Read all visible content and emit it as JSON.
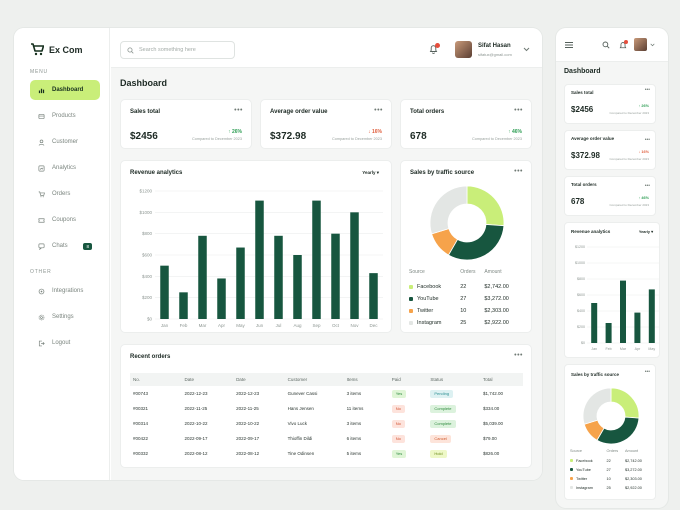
{
  "app": {
    "name": "Ex Com"
  },
  "sidebar": {
    "menu_label": "MENU",
    "other_label": "OTHER",
    "items": [
      {
        "label": "Dashboard"
      },
      {
        "label": "Products"
      },
      {
        "label": "Customer"
      },
      {
        "label": "Analytics"
      },
      {
        "label": "Orders"
      },
      {
        "label": "Coupons"
      },
      {
        "label": "Chats",
        "badge": "8"
      }
    ],
    "other_items": [
      {
        "label": "Integrations"
      },
      {
        "label": "Settings"
      },
      {
        "label": "Logout"
      }
    ]
  },
  "header": {
    "search_placeholder": "Search something here",
    "user_name": "Sifat Hasan",
    "user_email": "sifatux@gmail.com"
  },
  "page": {
    "title": "Dashboard"
  },
  "stats": [
    {
      "title": "Sales total",
      "value": "$2456",
      "change": "↑ 26%",
      "direction": "up",
      "note": "Compared to December 2023"
    },
    {
      "title": "Average order value",
      "value": "$372.98",
      "change": "↓ 16%",
      "direction": "down",
      "note": "Compared to December 2023"
    },
    {
      "title": "Total orders",
      "value": "678",
      "change": "↑ 46%",
      "direction": "up",
      "note": "Compared to December 2023"
    }
  ],
  "more_menu": "•••",
  "revenue": {
    "title": "Revenue analytics",
    "period": "Yearly"
  },
  "traffic": {
    "title": "Sales by traffic source",
    "columns": [
      "Source",
      "Orders",
      "Amount"
    ],
    "rows": [
      {
        "source": "Facebook",
        "orders": "22",
        "amount": "$2,742.00",
        "color": "#c9ee79"
      },
      {
        "source": "YouTube",
        "orders": "27",
        "amount": "$3,272.00",
        "color": "#17563f"
      },
      {
        "source": "Twitter",
        "orders": "10",
        "amount": "$2,303.00",
        "color": "#f6a34b"
      },
      {
        "source": "Instagram",
        "orders": "25",
        "amount": "$2,922.00",
        "color": "#e3e6e4"
      }
    ]
  },
  "recent_orders": {
    "title": "Recent orders",
    "columns": [
      "No.",
      "Date",
      "Date",
      "Customer",
      "Items",
      "Paid",
      "Status",
      "Total"
    ],
    "rows": [
      {
        "no": "#00743",
        "date1": "2022-12-23",
        "date2": "2022-12-23",
        "customer": "Gunever Cassi",
        "items": "3 items",
        "paid": "Yes",
        "status": "Pending",
        "total": "$1,742.00"
      },
      {
        "no": "#00321",
        "date1": "2022-11-25",
        "date2": "2022-11-25",
        "customer": "Hans Jensen",
        "items": "11 items",
        "paid": "No",
        "status": "Complete",
        "total": "$334.00"
      },
      {
        "no": "#00314",
        "date1": "2022-10-22",
        "date2": "2022-10-22",
        "customer": "Vivo Luck",
        "items": "3 items",
        "paid": "No",
        "status": "Complete",
        "total": "$5,039.00"
      },
      {
        "no": "#00422",
        "date1": "2022-09-17",
        "date2": "2022-09-17",
        "customer": "Thioffin Dildi",
        "items": "6 items",
        "paid": "No",
        "status": "Cancel",
        "total": "$79.00"
      },
      {
        "no": "#00332",
        "date1": "2022-08-12",
        "date2": "2022-08-12",
        "customer": "Tine Odinsen",
        "items": "5 items",
        "paid": "Yes",
        "status": "Hold",
        "total": "$826.00"
      }
    ]
  },
  "colors": {
    "accent": "#c9ee79",
    "brand": "#17563f",
    "twitter": "#f6a34b",
    "instagram": "#e3e6e4"
  },
  "chart_data": [
    {
      "type": "bar",
      "title": "Revenue analytics",
      "categories": [
        "Jan",
        "Feb",
        "Mar",
        "Apr",
        "May",
        "Jun",
        "Jul",
        "Aug",
        "Sep",
        "Oct",
        "Nov",
        "Dec"
      ],
      "values": [
        500,
        250,
        780,
        380,
        670,
        1110,
        780,
        600,
        1110,
        800,
        1000,
        430
      ],
      "yticks": [
        "$0",
        "$200",
        "$400",
        "$600",
        "$800",
        "$1000",
        "$1200"
      ],
      "ylim": [
        0,
        1200
      ],
      "xlabel": "",
      "ylabel": ""
    },
    {
      "type": "pie",
      "title": "Sales by traffic source",
      "labels": [
        "Facebook",
        "YouTube",
        "Twitter",
        "Instagram"
      ],
      "values": [
        22,
        27,
        10,
        25
      ]
    }
  ],
  "mobile": {
    "title": "Dashboard",
    "revenue_title": "Revenue analytics",
    "period": "Yearly",
    "chart_categories": [
      "Jan",
      "Feb",
      "Mar",
      "Apr",
      "May"
    ],
    "chart_values": [
      500,
      250,
      780,
      380,
      670
    ],
    "traffic_title": "Sales by traffic source"
  }
}
